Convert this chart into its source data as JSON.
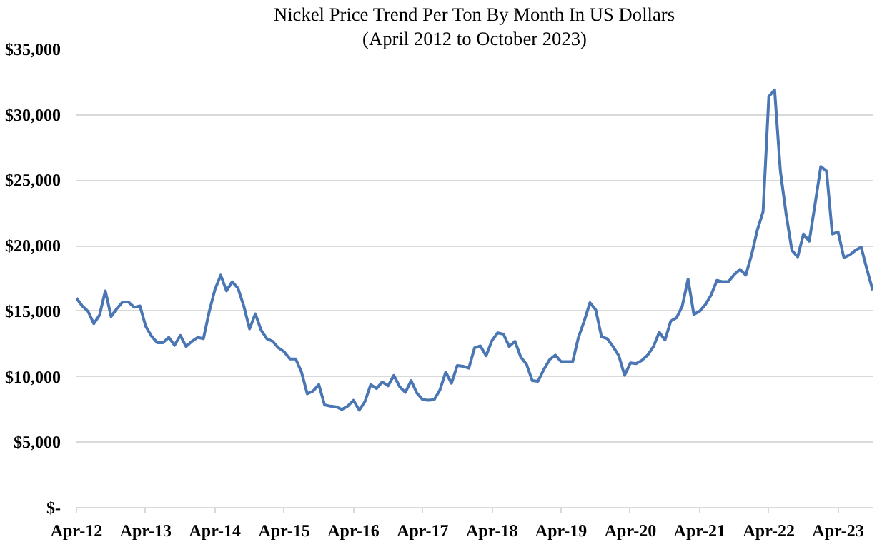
{
  "chart_data": {
    "type": "line",
    "title": "Nickel Price Trend Per Ton By Month In US Dollars",
    "subtitle": "(April 2012 to October 2023)",
    "x": [
      "2012-04",
      "2012-05",
      "2012-06",
      "2012-07",
      "2012-08",
      "2012-09",
      "2012-10",
      "2012-11",
      "2012-12",
      "2013-01",
      "2013-02",
      "2013-03",
      "2013-04",
      "2013-05",
      "2013-06",
      "2013-07",
      "2013-08",
      "2013-09",
      "2013-10",
      "2013-11",
      "2013-12",
      "2014-01",
      "2014-02",
      "2014-03",
      "2014-04",
      "2014-05",
      "2014-06",
      "2014-07",
      "2014-08",
      "2014-09",
      "2014-10",
      "2014-11",
      "2014-12",
      "2015-01",
      "2015-02",
      "2015-03",
      "2015-04",
      "2015-05",
      "2015-06",
      "2015-07",
      "2015-08",
      "2015-09",
      "2015-10",
      "2015-11",
      "2015-12",
      "2016-01",
      "2016-02",
      "2016-03",
      "2016-04",
      "2016-05",
      "2016-06",
      "2016-07",
      "2016-08",
      "2016-09",
      "2016-10",
      "2016-11",
      "2016-12",
      "2017-01",
      "2017-02",
      "2017-03",
      "2017-04",
      "2017-05",
      "2017-06",
      "2017-07",
      "2017-08",
      "2017-09",
      "2017-10",
      "2017-11",
      "2017-12",
      "2018-01",
      "2018-02",
      "2018-03",
      "2018-04",
      "2018-05",
      "2018-06",
      "2018-07",
      "2018-08",
      "2018-09",
      "2018-10",
      "2018-11",
      "2018-12",
      "2019-01",
      "2019-02",
      "2019-03",
      "2019-04",
      "2019-05",
      "2019-06",
      "2019-07",
      "2019-08",
      "2019-09",
      "2019-10",
      "2019-11",
      "2019-12",
      "2020-01",
      "2020-02",
      "2020-03",
      "2020-04",
      "2020-05",
      "2020-06",
      "2020-07",
      "2020-08",
      "2020-09",
      "2020-10",
      "2020-11",
      "2020-12",
      "2021-01",
      "2021-02",
      "2021-03",
      "2021-04",
      "2021-05",
      "2021-06",
      "2021-07",
      "2021-08",
      "2021-09",
      "2021-10",
      "2021-11",
      "2021-12",
      "2022-01",
      "2022-02",
      "2022-03",
      "2022-04",
      "2022-05",
      "2022-06",
      "2022-07",
      "2022-08",
      "2022-09",
      "2022-10",
      "2022-11",
      "2022-12",
      "2023-01",
      "2023-02",
      "2023-03",
      "2023-04",
      "2023-05",
      "2023-06",
      "2023-07",
      "2023-08",
      "2023-09",
      "2023-10"
    ],
    "series": [
      {
        "color": "#4a76b4",
        "values": [
          16000,
          15400,
          15000,
          14050,
          14700,
          16550,
          14600,
          15200,
          15700,
          15700,
          15300,
          15400,
          13850,
          13100,
          12600,
          12600,
          13000,
          12400,
          13150,
          12300,
          12700,
          13000,
          12900,
          14950,
          16650,
          17750,
          16550,
          17250,
          16750,
          15400,
          13650,
          14800,
          13550,
          12900,
          12700,
          12200,
          11900,
          11350,
          11350,
          10350,
          8700,
          8900,
          9400,
          7850,
          7750,
          7700,
          7500,
          7750,
          8200,
          7450,
          8100,
          9400,
          9100,
          9600,
          9300,
          10100,
          9250,
          8800,
          9700,
          8750,
          8250,
          8200,
          8250,
          9000,
          10350,
          9500,
          10850,
          10800,
          10650,
          12200,
          12350,
          11600,
          12750,
          13350,
          13250,
          12300,
          12700,
          11500,
          10950,
          9700,
          9650,
          10550,
          11300,
          11650,
          11150,
          11150,
          11150,
          13000,
          14250,
          15650,
          15100,
          13050,
          12900,
          12300,
          11600,
          10100,
          11050,
          11000,
          11250,
          11650,
          12300,
          13400,
          12800,
          14250,
          14500,
          15400,
          17450,
          14750,
          15000,
          15500,
          16250,
          17350,
          17250,
          17250,
          17800,
          18200,
          17750,
          19300,
          21200,
          22600,
          31400,
          31900,
          25700,
          22400,
          19650,
          19150,
          20900,
          20350,
          23150,
          26050,
          25700,
          20900,
          21050,
          19100,
          19300,
          19650,
          19900,
          18200,
          16600
        ]
      }
    ],
    "xlim": [
      "2012-04",
      "2023-10"
    ],
    "xticks": [
      {
        "value": "2012-04",
        "label": "Apr-12"
      },
      {
        "value": "2013-04",
        "label": "Apr-13"
      },
      {
        "value": "2014-04",
        "label": "Apr-14"
      },
      {
        "value": "2015-04",
        "label": "Apr-15"
      },
      {
        "value": "2016-04",
        "label": "Apr-16"
      },
      {
        "value": "2017-04",
        "label": "Apr-17"
      },
      {
        "value": "2018-04",
        "label": "Apr-18"
      },
      {
        "value": "2019-04",
        "label": "Apr-19"
      },
      {
        "value": "2020-04",
        "label": "Apr-20"
      },
      {
        "value": "2021-04",
        "label": "Apr-21"
      },
      {
        "value": "2022-04",
        "label": "Apr-22"
      },
      {
        "value": "2023-04",
        "label": "Apr-23"
      }
    ],
    "ylim": [
      0,
      35000
    ],
    "yticks": [
      {
        "value": 0,
        "label": "$-"
      },
      {
        "value": 5000,
        "label": "$5,000"
      },
      {
        "value": 10000,
        "label": "$10,000"
      },
      {
        "value": 15000,
        "label": "$15,000"
      },
      {
        "value": 20000,
        "label": "$20,000"
      },
      {
        "value": 25000,
        "label": "$25,000"
      },
      {
        "value": 30000,
        "label": "$30,000"
      },
      {
        "value": 35000,
        "label": "$35,000"
      }
    ],
    "grid": "y",
    "marker": "none",
    "line_style": "solid"
  }
}
